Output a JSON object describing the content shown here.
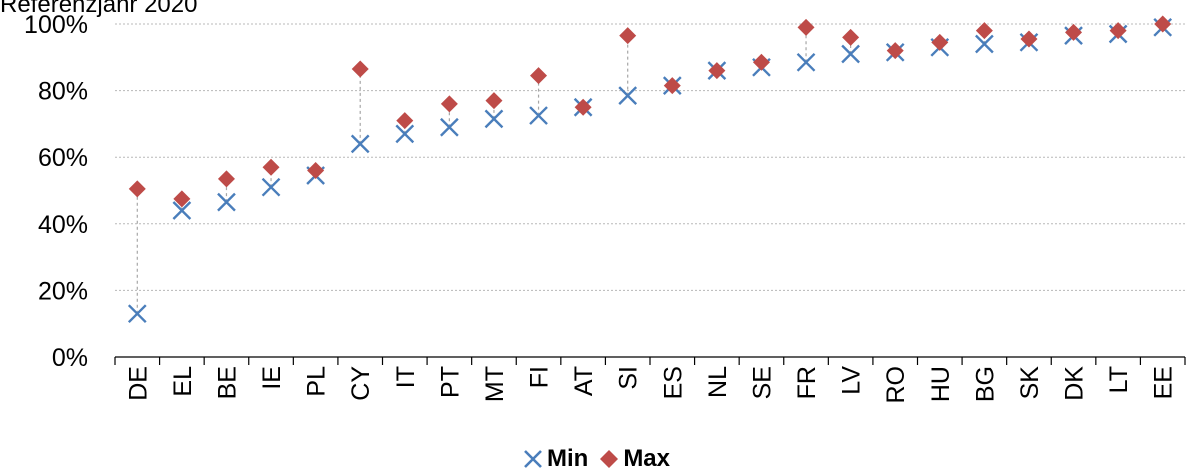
{
  "partial_title": "Referenzjahr 2020",
  "chart_data": {
    "type": "scatter",
    "categories": [
      "DE",
      "EL",
      "BE",
      "IE",
      "PL",
      "CY",
      "IT",
      "PT",
      "MT",
      "FI",
      "AT",
      "SI",
      "ES",
      "NL",
      "SE",
      "FR",
      "LV",
      "RO",
      "HU",
      "BG",
      "SK",
      "DK",
      "LT",
      "EE"
    ],
    "series": [
      {
        "name": "Min",
        "marker": "x",
        "color": "#4a7ebb",
        "values": [
          13,
          44,
          46.5,
          51,
          54.5,
          64,
          67,
          69,
          71.5,
          72.5,
          75,
          78.5,
          81.5,
          86,
          87,
          88.5,
          91,
          91.5,
          93,
          94,
          94.5,
          96.5,
          97,
          99
        ]
      },
      {
        "name": "Max",
        "marker": "diamond",
        "color": "#be4b48",
        "values": [
          50.5,
          47.5,
          53.5,
          57,
          56,
          86.5,
          71,
          76,
          77,
          84.5,
          75,
          96.5,
          81.5,
          86,
          88.5,
          99,
          96,
          92,
          94.5,
          98,
          95.5,
          97.5,
          98,
          100
        ]
      }
    ],
    "yticks": [
      "0%",
      "20%",
      "40%",
      "60%",
      "80%",
      "100%"
    ],
    "ylim": [
      0,
      100
    ],
    "grid": true,
    "legend": "bottom"
  }
}
